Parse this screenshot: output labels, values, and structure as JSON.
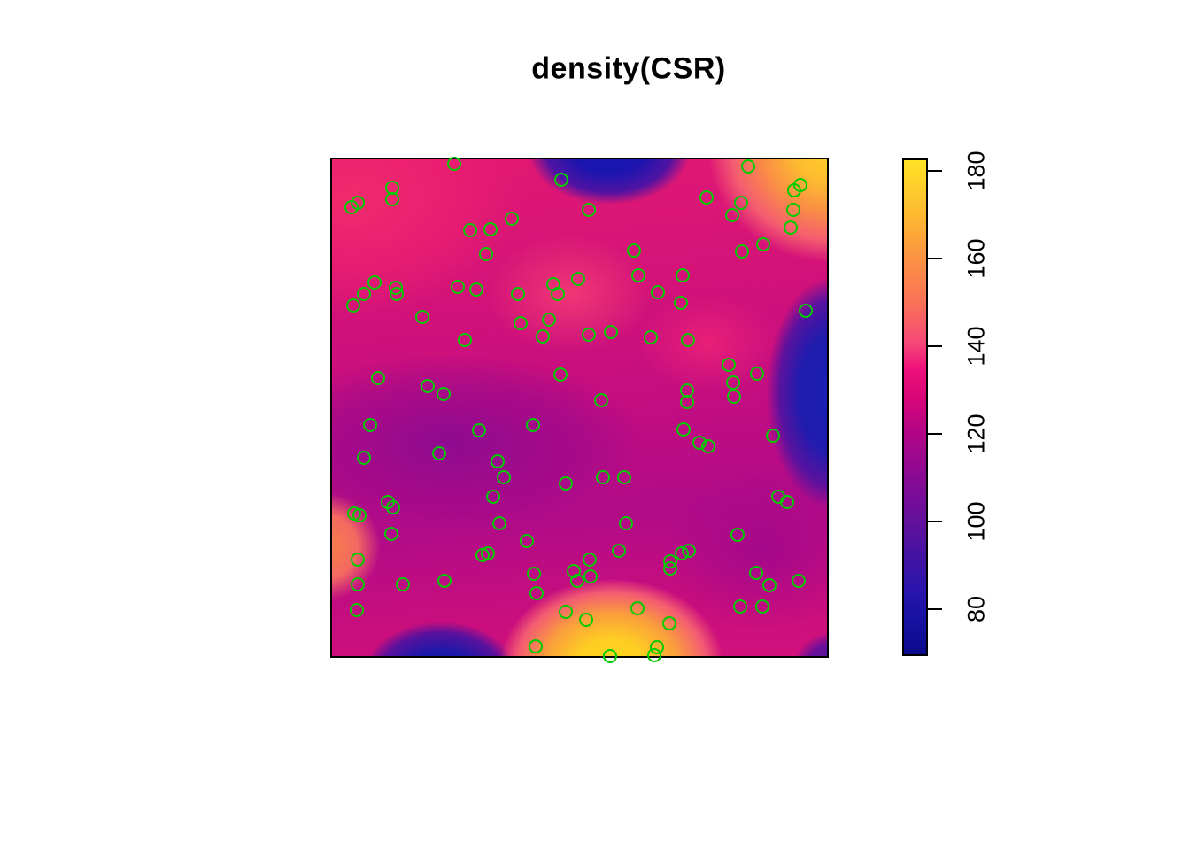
{
  "chart_data": {
    "type": "heatmap",
    "title": "density(CSR)",
    "subtitle": "",
    "axes": "none (unit observation window, no axis ticks on main panel)",
    "window": {
      "xrange": [
        0,
        1
      ],
      "yrange": [
        0,
        1
      ]
    },
    "overlay": "scatter of point pattern locations drawn as open green circles",
    "colorbar": {
      "position": "right",
      "ticks": [
        80,
        100,
        120,
        140,
        160,
        180
      ],
      "vmin": 69.3,
      "vmax": 182.8,
      "label_rotation_deg": -90,
      "gradient_stops": [
        {
          "pos": 0.0,
          "color": "#0B0A8C"
        },
        {
          "pos": 0.07,
          "color": "#1711A2"
        },
        {
          "pos": 0.13,
          "color": "#2A14AD"
        },
        {
          "pos": 0.2,
          "color": "#4413A2"
        },
        {
          "pos": 0.27,
          "color": "#63109C"
        },
        {
          "pos": 0.36,
          "color": "#8A0A93"
        },
        {
          "pos": 0.45,
          "color": "#B30587"
        },
        {
          "pos": 0.52,
          "color": "#D90677"
        },
        {
          "pos": 0.58,
          "color": "#EE127B"
        },
        {
          "pos": 0.63,
          "color": "#F64878"
        },
        {
          "pos": 0.71,
          "color": "#F97157"
        },
        {
          "pos": 0.8,
          "color": "#FB9243"
        },
        {
          "pos": 0.89,
          "color": "#FDB931"
        },
        {
          "pos": 1.0,
          "color": "#FFE226"
        }
      ]
    },
    "density_hotspots": [
      {
        "desc": "low-density (dark blue) blob at top centre",
        "x": 0.56,
        "y": 0.0,
        "approx_value": 75
      },
      {
        "desc": "high-density (yellow) blob at top-right corner",
        "x": 1.0,
        "y": 0.0,
        "approx_value": 180
      },
      {
        "desc": "low-density (blue) band on right edge, mid height",
        "x": 1.0,
        "y": 0.47,
        "approx_value": 78
      },
      {
        "desc": "small low-density (indigo) patch bottom-right corner",
        "x": 1.0,
        "y": 1.0,
        "approx_value": 90
      },
      {
        "desc": "largest high-density (yellow) blob at bottom centre",
        "x": 0.565,
        "y": 1.0,
        "approx_value": 183
      },
      {
        "desc": "low-density (blue) blob at bottom-left",
        "x": 0.22,
        "y": 1.0,
        "approx_value": 77
      },
      {
        "desc": "moderate-high (orange) spot on left edge",
        "x": 0.0,
        "y": 0.78,
        "approx_value": 155
      },
      {
        "desc": "elevated pink region across upper-left quadrant",
        "x": 0.08,
        "y": 0.1,
        "approx_value": 135
      },
      {
        "desc": "purple (below-average) band centre-left",
        "x": 0.25,
        "y": 0.57,
        "approx_value": 105
      }
    ],
    "points_origin": "top-left, fractions of window",
    "points": [
      [
        0.247,
        0.009
      ],
      [
        0.464,
        0.041
      ],
      [
        0.121,
        0.057
      ],
      [
        0.121,
        0.08
      ],
      [
        0.052,
        0.087
      ],
      [
        0.039,
        0.096
      ],
      [
        0.363,
        0.119
      ],
      [
        0.279,
        0.142
      ],
      [
        0.32,
        0.14
      ],
      [
        0.311,
        0.19
      ],
      [
        0.085,
        0.248
      ],
      [
        0.128,
        0.259
      ],
      [
        0.13,
        0.271
      ],
      [
        0.064,
        0.271
      ],
      [
        0.043,
        0.294
      ],
      [
        0.254,
        0.257
      ],
      [
        0.292,
        0.262
      ],
      [
        0.375,
        0.271
      ],
      [
        0.448,
        0.252
      ],
      [
        0.498,
        0.241
      ],
      [
        0.457,
        0.271
      ],
      [
        0.183,
        0.317
      ],
      [
        0.381,
        0.33
      ],
      [
        0.439,
        0.323
      ],
      [
        0.425,
        0.356
      ],
      [
        0.269,
        0.363
      ],
      [
        0.093,
        0.441
      ],
      [
        0.194,
        0.457
      ],
      [
        0.226,
        0.473
      ],
      [
        0.461,
        0.434
      ],
      [
        0.84,
        0.014
      ],
      [
        0.947,
        0.051
      ],
      [
        0.934,
        0.062
      ],
      [
        0.756,
        0.076
      ],
      [
        0.827,
        0.087
      ],
      [
        0.808,
        0.112
      ],
      [
        0.932,
        0.101
      ],
      [
        0.927,
        0.138
      ],
      [
        0.518,
        0.101
      ],
      [
        0.61,
        0.183
      ],
      [
        0.872,
        0.172
      ],
      [
        0.829,
        0.186
      ],
      [
        0.619,
        0.234
      ],
      [
        0.708,
        0.234
      ],
      [
        0.658,
        0.268
      ],
      [
        0.705,
        0.289
      ],
      [
        0.957,
        0.305
      ],
      [
        0.518,
        0.353
      ],
      [
        0.564,
        0.348
      ],
      [
        0.644,
        0.358
      ],
      [
        0.719,
        0.363
      ],
      [
        0.801,
        0.413
      ],
      [
        0.858,
        0.431
      ],
      [
        0.81,
        0.45
      ],
      [
        0.813,
        0.477
      ],
      [
        0.717,
        0.466
      ],
      [
        0.717,
        0.489
      ],
      [
        0.543,
        0.484
      ],
      [
        0.077,
        0.534
      ],
      [
        0.297,
        0.546
      ],
      [
        0.406,
        0.535
      ],
      [
        0.064,
        0.601
      ],
      [
        0.217,
        0.592
      ],
      [
        0.334,
        0.608
      ],
      [
        0.347,
        0.64
      ],
      [
        0.326,
        0.679
      ],
      [
        0.473,
        0.652
      ],
      [
        0.112,
        0.69
      ],
      [
        0.123,
        0.7
      ],
      [
        0.044,
        0.713
      ],
      [
        0.055,
        0.716
      ],
      [
        0.119,
        0.754
      ],
      [
        0.338,
        0.732
      ],
      [
        0.393,
        0.768
      ],
      [
        0.052,
        0.805
      ],
      [
        0.304,
        0.796
      ],
      [
        0.315,
        0.794
      ],
      [
        0.407,
        0.835
      ],
      [
        0.488,
        0.828
      ],
      [
        0.495,
        0.848
      ],
      [
        0.413,
        0.874
      ],
      [
        0.052,
        0.856
      ],
      [
        0.144,
        0.855
      ],
      [
        0.228,
        0.849
      ],
      [
        0.05,
        0.908
      ],
      [
        0.473,
        0.91
      ],
      [
        0.411,
        0.98
      ],
      [
        0.71,
        0.543
      ],
      [
        0.742,
        0.571
      ],
      [
        0.761,
        0.578
      ],
      [
        0.89,
        0.557
      ],
      [
        0.548,
        0.64
      ],
      [
        0.591,
        0.64
      ],
      [
        0.902,
        0.679
      ],
      [
        0.92,
        0.69
      ],
      [
        0.594,
        0.732
      ],
      [
        0.82,
        0.755
      ],
      [
        0.58,
        0.787
      ],
      [
        0.721,
        0.787
      ],
      [
        0.706,
        0.793
      ],
      [
        0.683,
        0.809
      ],
      [
        0.683,
        0.824
      ],
      [
        0.52,
        0.805
      ],
      [
        0.856,
        0.832
      ],
      [
        0.884,
        0.858
      ],
      [
        0.943,
        0.848
      ],
      [
        0.523,
        0.84
      ],
      [
        0.824,
        0.901
      ],
      [
        0.87,
        0.901
      ],
      [
        0.617,
        0.904
      ],
      [
        0.514,
        0.927
      ],
      [
        0.562,
        1.0
      ],
      [
        0.681,
        0.934
      ],
      [
        0.657,
        0.982
      ],
      [
        0.651,
        0.998
      ]
    ]
  },
  "style": {
    "point_color": "#00CD00",
    "background_color": "#FFFFFF",
    "box_border_color": "#000000",
    "field_gradients": [
      "radial-gradient(115px 78px at 56% -2%, #1617B3 0%, #1C15AF 35%, #5013A3 62%, rgba(140,8,146,0) 80%)",
      "radial-gradient(165px 150px at 101% -2%, #FFD224 0%, #FDBA31 26%, #FA9143 46%, #F55D70 68%, rgba(237,30,118,0) 85%)",
      "radial-gradient(82px 145px at 101% 47%, #1A20B4 0%, #1F1CAE 45%, #5A129F 72%, rgba(150,10,140,0) 90%)",
      "radial-gradient(60px 48px at 102% 102%, #3A1BA8 0%, #6B1099 55%, rgba(160,8,135,0) 82%)",
      "radial-gradient(135px 105px at 56.5% 102%, #FFD91C 0%, #FECC24 30%, #FA9F3C 56%, #F45C72 79%, rgba(230,16,112,0) 94%)",
      "radial-gradient(100px 70px at 22% 104%, #131CA8 0%, #1B18A9 40%, #5A119D 70%, rgba(150,10,140,0) 88%)",
      "radial-gradient(88px 82px at -2% 78%, #F68445 0%, #F46962 45%, rgba(238,40,110,0) 75%)",
      "radial-gradient(250px 175px at 4% 8%, rgba(243,45,108,0.9) 0%, rgba(240,35,110,0.55) 45%, rgba(238,30,112,0) 75%)",
      "radial-gradient(135px 95px at 48% 27%, rgba(246,62,116,0.85) 0%, rgba(242,45,115,0) 70%)",
      "radial-gradient(115px 80px at 76% 37%, rgba(240,35,118,0.8) 0%, rgba(238,30,118,0) 70%)",
      "radial-gradient(270px 125px at 24% 57%, rgba(137,9,146,0.9) 0%, rgba(145,8,142,0.45) 55%, rgba(150,8,140,0) 80%)",
      "radial-gradient(155px 120px at 87% 79%, rgba(158,6,140,0.8) 0%, rgba(158,6,140,0) 75%)",
      "linear-gradient(175deg, #E21973 0%, #D31279 28%, #C30D81 50%, #B10B88 70%, #C90E7D 88%, #D2117B 100%)"
    ]
  }
}
